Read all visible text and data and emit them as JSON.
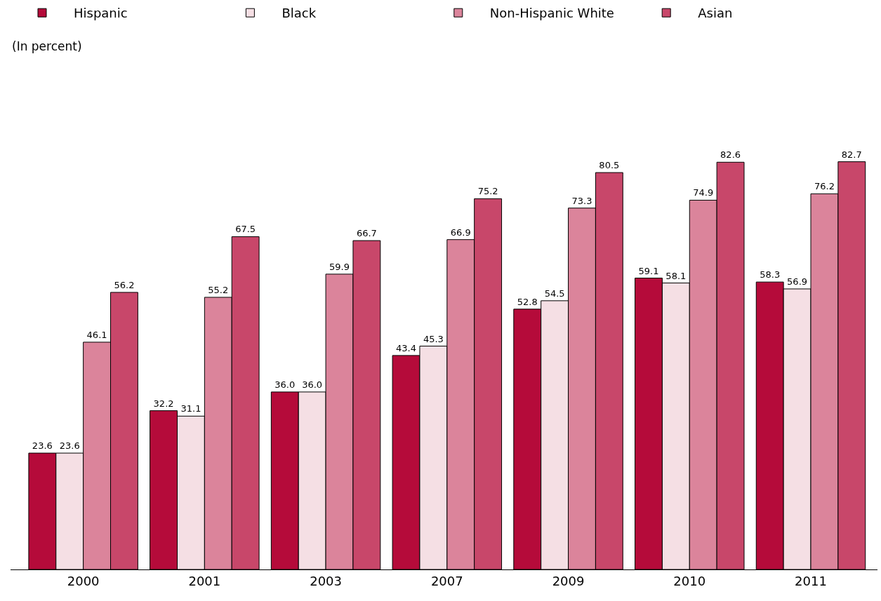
{
  "chart_data": {
    "type": "bar",
    "categories": [
      "2000",
      "2001",
      "2003",
      "2007",
      "2009",
      "2010",
      "2011"
    ],
    "series": [
      {
        "name": "Hispanic",
        "color": "#b50b3a",
        "values": [
          23.6,
          32.2,
          36.0,
          43.4,
          52.8,
          59.1,
          58.3
        ],
        "value_labels": [
          "23.6",
          "32.2",
          "36.0",
          "43.4",
          "52.8",
          "59.1",
          "58.3"
        ]
      },
      {
        "name": "Black",
        "color": "#f5dfe4",
        "values": [
          23.6,
          31.1,
          36.0,
          45.3,
          54.5,
          58.1,
          56.9
        ],
        "value_labels": [
          "23.6",
          "31.1",
          "36.0",
          "45.3",
          "54.5",
          "58.1",
          "56.9"
        ]
      },
      {
        "name": "Non-Hispanic White",
        "color": "#db849b",
        "values": [
          46.1,
          55.2,
          59.9,
          66.9,
          73.3,
          74.9,
          76.2
        ],
        "value_labels": [
          "46.1",
          "55.2",
          "59.9",
          "66.9",
          "73.3",
          "74.9",
          "76.2"
        ]
      },
      {
        "name": "Asian",
        "color": "#c8476a",
        "values": [
          56.2,
          67.5,
          66.7,
          75.2,
          80.5,
          82.6,
          82.7
        ],
        "value_labels": [
          "56.2",
          "67.5",
          "66.7",
          "75.2",
          "80.5",
          "82.6",
          "82.7"
        ]
      }
    ],
    "annotations": [
      "(In percent)"
    ],
    "legend": "top",
    "tick_labels": "x"
  }
}
